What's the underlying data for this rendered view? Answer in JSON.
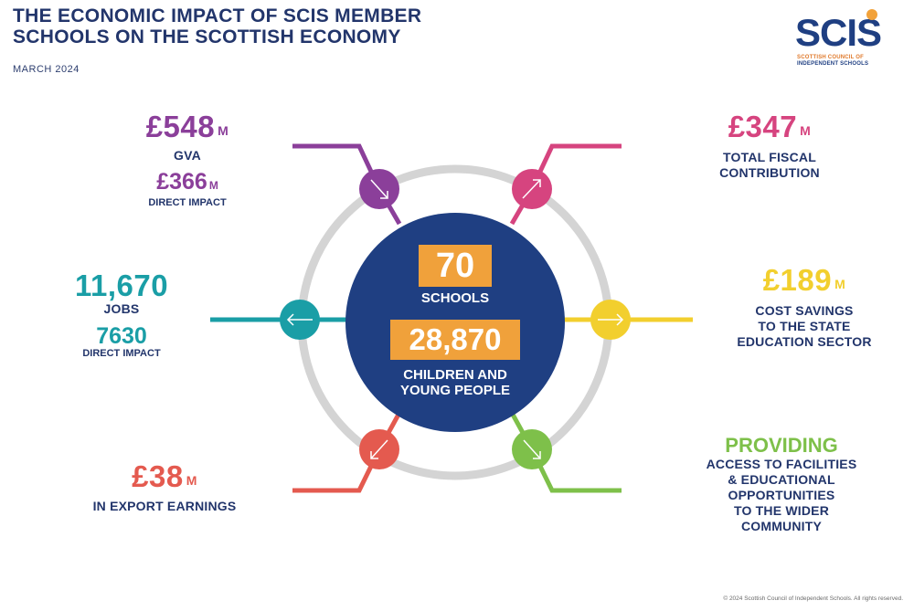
{
  "header": {
    "title_line1": "THE ECONOMIC IMPACT OF SCIS MEMBER",
    "title_line2": "SCHOOLS ON THE SCOTTISH ECONOMY",
    "date": "MARCH 2024"
  },
  "logo": {
    "word": "SCIS",
    "sub_line1": "SCOTTISH COUNCIL OF",
    "sub_line2": "INDEPENDENT SCHOOLS"
  },
  "center": {
    "schools_value": "70",
    "schools_label": "SCHOOLS",
    "children_value": "28,870",
    "children_label_line1": "CHILDREN AND",
    "children_label_line2": "YOUNG PEOPLE"
  },
  "stats": {
    "gva": {
      "value": "£548",
      "unit": "M",
      "label": "GVA",
      "sub_value": "£366",
      "sub_unit": "M",
      "sub_label": "DIRECT IMPACT",
      "color": "#8b3f9a"
    },
    "fiscal": {
      "value": "£347",
      "unit": "M",
      "label_line1": "TOTAL FISCAL",
      "label_line2": "CONTRIBUTION",
      "color": "#d6447f"
    },
    "jobs": {
      "value": "11,670",
      "label": "JOBS",
      "sub_value": "7630",
      "sub_label": "DIRECT IMPACT",
      "color": "#1a9ea6"
    },
    "savings": {
      "value": "£189",
      "unit": "M",
      "label_line1": "COST SAVINGS",
      "label_line2": "TO THE STATE",
      "label_line3": "EDUCATION SECTOR",
      "color": "#f2cf2e"
    },
    "export": {
      "value": "£38",
      "unit": "M",
      "label": "IN EXPORT EARNINGS",
      "color": "#e45a4f"
    },
    "providing": {
      "value": "PROVIDING",
      "label_line1": "ACCESS TO FACILITIES",
      "label_line2": "& EDUCATIONAL",
      "label_line3": "OPPORTUNITIES",
      "label_line4": "TO THE WIDER",
      "label_line5": "COMMUNITY",
      "color": "#7ec04a"
    }
  },
  "colors": {
    "navy": "#1f3f82",
    "orange": "#f0a13b",
    "ring": "#d4d4d4"
  },
  "footer": {
    "copyright": "© 2024 Scottish Council of Independent Schools.  All rights reserved."
  }
}
